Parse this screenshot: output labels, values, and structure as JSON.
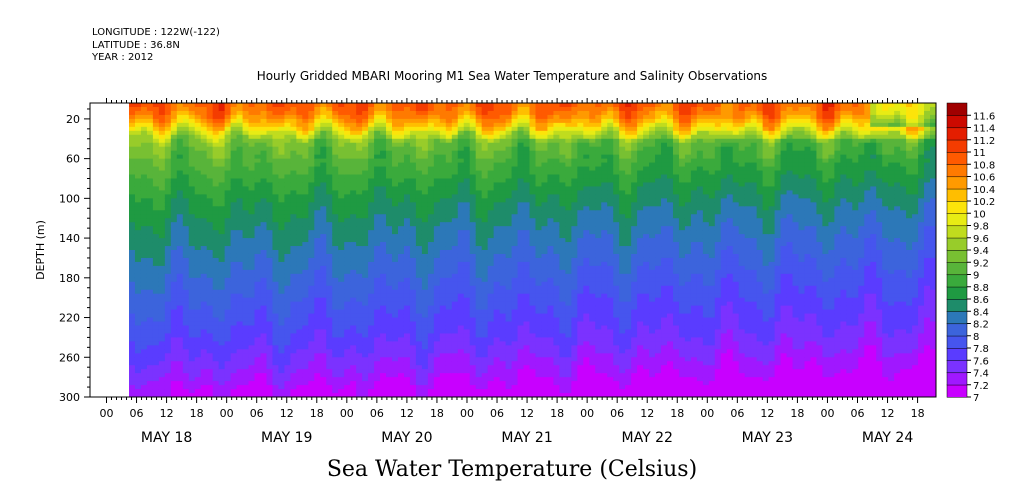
{
  "header": {
    "longitude": "LONGITUDE : 122W(-122)",
    "latitude": "LATITUDE : 36.8N",
    "year": "YEAR : 2012"
  },
  "chart_data": {
    "type": "heatmap",
    "title": "Hourly Gridded MBARI Mooring M1 Sea Water Temperature and Salinity Observations",
    "bottom_label": "Sea Water Temperature (Celsius)",
    "ylabel": "DEPTH (m)",
    "ylim": [
      300,
      4
    ],
    "y_ticks": [
      20,
      60,
      100,
      140,
      180,
      220,
      260,
      300
    ],
    "x_hour_ticks": [
      "00",
      "06",
      "12",
      "18",
      "00",
      "06",
      "12",
      "18",
      "00",
      "06",
      "12",
      "18",
      "00",
      "06",
      "12",
      "18",
      "00",
      "06",
      "12",
      "18",
      "00",
      "06",
      "12",
      "18",
      "00",
      "06",
      "12",
      "18"
    ],
    "x_day_labels": [
      "MAY 18",
      "MAY 19",
      "MAY 20",
      "MAY 21",
      "MAY 22",
      "MAY 23",
      "MAY 24"
    ],
    "data_start": "2012-05-17 12:00",
    "data_end": "2012-05-24 18:00",
    "colorbar": {
      "levels": [
        7,
        7.2,
        7.4,
        7.6,
        7.8,
        8,
        8.2,
        8.4,
        8.6,
        8.8,
        9,
        9.2,
        9.4,
        9.6,
        9.8,
        10,
        10.2,
        10.4,
        10.6,
        10.8,
        11,
        11.2,
        11.4,
        11.6
      ],
      "labels": [
        "7",
        "7.2",
        "7.4",
        "7.6",
        "7.8",
        "8",
        "8.2",
        "8.4",
        "8.6",
        "8.8",
        "9",
        "9.2",
        "9.4",
        "9.6",
        "9.8",
        "10",
        "10.2",
        "10.4",
        "10.6",
        "10.8",
        "11",
        "11.2",
        "11.4",
        "11.6"
      ],
      "colors": [
        "#c800ff",
        "#a018ff",
        "#7b32ff",
        "#5a3cff",
        "#4655ee",
        "#3c64dc",
        "#2c78b8",
        "#1e8c6a",
        "#1f9a42",
        "#3aaa3c",
        "#58b43a",
        "#78c032",
        "#98cc2a",
        "#c0dc1e",
        "#e8ec14",
        "#fce40a",
        "#ffbe00",
        "#ff9a00",
        "#ff7a00",
        "#ff5a00",
        "#f43c00",
        "#e41e00",
        "#cc0a00",
        "#a00000"
      ]
    },
    "depth_profile": [
      {
        "depth": 5,
        "value": 10.9
      },
      {
        "depth": 15,
        "value": 10.7
      },
      {
        "depth": 25,
        "value": 10.3
      },
      {
        "depth": 32,
        "value": 9.9
      },
      {
        "depth": 40,
        "value": 9.4
      },
      {
        "depth": 55,
        "value": 9.2
      },
      {
        "depth": 75,
        "value": 9.0
      },
      {
        "depth": 95,
        "value": 8.8
      },
      {
        "depth": 120,
        "value": 8.6
      },
      {
        "depth": 150,
        "value": 8.4
      },
      {
        "depth": 180,
        "value": 8.2
      },
      {
        "depth": 210,
        "value": 8.0
      },
      {
        "depth": 240,
        "value": 7.8
      },
      {
        "depth": 260,
        "value": 7.6
      },
      {
        "depth": 280,
        "value": 7.4
      },
      {
        "depth": 295,
        "value": 7.2
      }
    ]
  }
}
